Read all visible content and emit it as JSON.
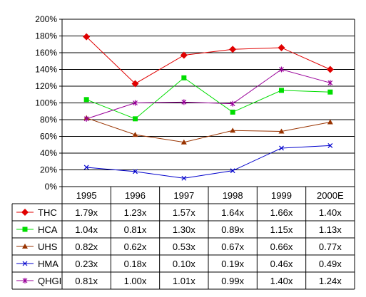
{
  "chart_data": {
    "type": "line",
    "categories": [
      "1995",
      "1996",
      "1997",
      "1998",
      "1999",
      "2000E"
    ],
    "ylim": [
      0,
      200
    ],
    "yticks": [
      "0%",
      "20%",
      "40%",
      "60%",
      "80%",
      "100%",
      "120%",
      "140%",
      "160%",
      "180%",
      "200%"
    ],
    "grid": true,
    "legend": "data table below plot",
    "series": [
      {
        "name": "THC",
        "color": "#e00000",
        "marker": "diamond",
        "values": [
          179,
          123,
          157,
          164,
          166,
          140
        ],
        "labels": [
          "1.79x",
          "1.23x",
          "1.57x",
          "1.64x",
          "1.66x",
          "1.40x"
        ]
      },
      {
        "name": "HCA",
        "color": "#00dd00",
        "marker": "square",
        "values": [
          104,
          81,
          130,
          89,
          115,
          113
        ],
        "labels": [
          "1.04x",
          "0.81x",
          "1.30x",
          "0.89x",
          "1.15x",
          "1.13x"
        ]
      },
      {
        "name": "UHS",
        "color": "#993300",
        "marker": "triangle",
        "values": [
          82,
          62,
          53,
          67,
          66,
          77
        ],
        "labels": [
          "0.82x",
          "0.62x",
          "0.53x",
          "0.67x",
          "0.66x",
          "0.77x"
        ]
      },
      {
        "name": "HMA",
        "color": "#0000cc",
        "marker": "x",
        "values": [
          23,
          18,
          10,
          19,
          46,
          49
        ],
        "labels": [
          "0.23x",
          "0.18x",
          "0.10x",
          "0.19x",
          "0.46x",
          "0.49x"
        ]
      },
      {
        "name": "QHGI",
        "color": "#990099",
        "marker": "star",
        "values": [
          81,
          100,
          101,
          99,
          140,
          124
        ],
        "labels": [
          "0.81x",
          "1.00x",
          "1.01x",
          "0.99x",
          "1.40x",
          "1.24x"
        ]
      }
    ]
  }
}
